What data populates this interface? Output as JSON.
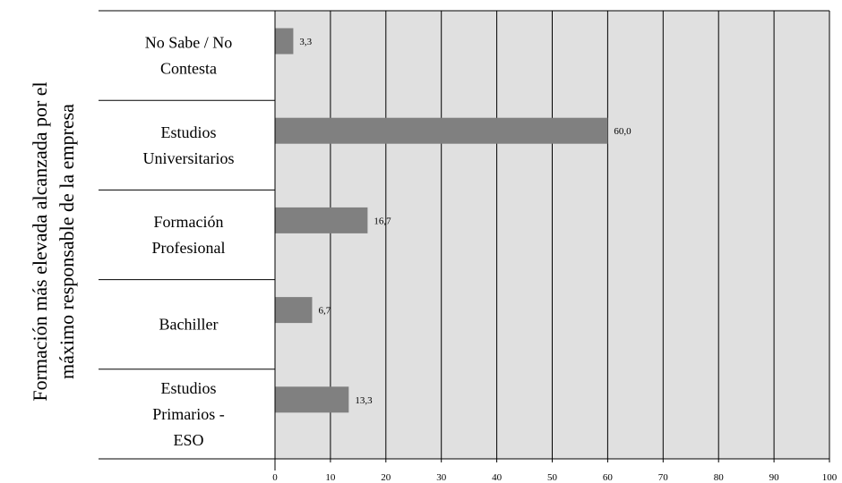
{
  "chart_data": {
    "type": "bar",
    "orientation": "horizontal",
    "ylabel_lines": [
      "Formación más elevada alcanzada por el",
      "máximo responsable de la empresa"
    ],
    "xlabel": "",
    "categories": [
      [
        "No Sabe / No",
        "Contesta"
      ],
      [
        "Estudios",
        "Universitarios"
      ],
      [
        "Formación",
        "Profesional"
      ],
      [
        "Bachiller"
      ],
      [
        "Estudios",
        "Primarios -",
        "ESO"
      ]
    ],
    "values": [
      3.3,
      60.0,
      16.7,
      6.7,
      13.3
    ],
    "value_labels": [
      "3,3",
      "60,0",
      "16,7",
      "6,7",
      "13,3"
    ],
    "xlim": [
      0,
      100
    ],
    "xticks": [
      0,
      10,
      20,
      30,
      40,
      50,
      60,
      70,
      80,
      90,
      100
    ],
    "grid": true,
    "colors": {
      "bar": "#808080",
      "plot_background": "#e0e0e0",
      "grid": "#000000"
    }
  }
}
